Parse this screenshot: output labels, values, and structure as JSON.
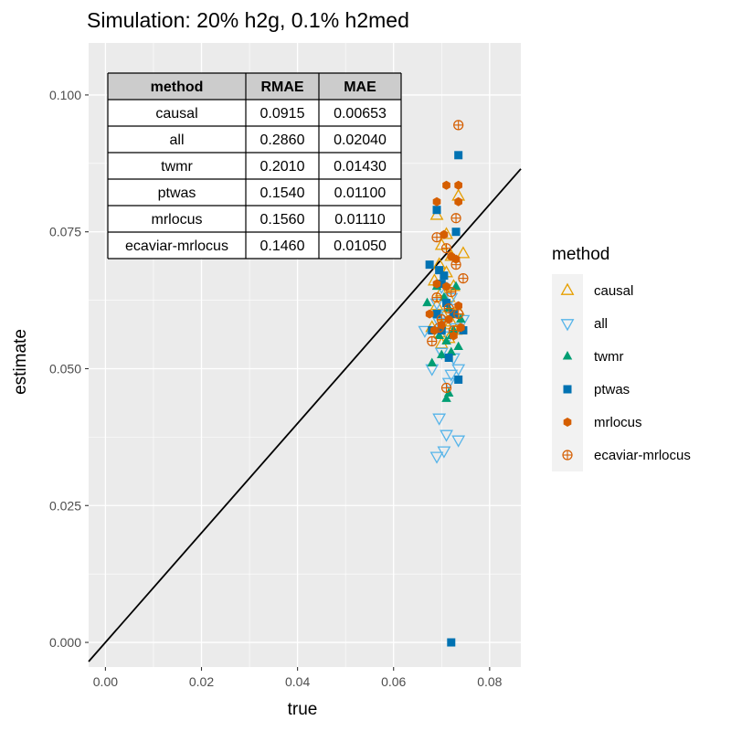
{
  "chart_data": {
    "type": "scatter",
    "title": "Simulation: 20% h2g, 0.1% h2med",
    "xlabel": "true",
    "ylabel": "estimate",
    "xlim": [
      -0.0035,
      0.0865
    ],
    "ylim": [
      -0.0045,
      0.1095
    ],
    "xticks": [
      0.0,
      0.02,
      0.04,
      0.06,
      0.08
    ],
    "xtick_labels": [
      "0.00",
      "0.02",
      "0.04",
      "0.06",
      "0.08"
    ],
    "yticks": [
      0.0,
      0.025,
      0.05,
      0.075,
      0.1
    ],
    "ytick_labels": [
      "0.000",
      "0.025",
      "0.050",
      "0.075",
      "0.100"
    ],
    "grid": true,
    "reference_line": {
      "slope": 1,
      "intercept": 0,
      "color": "#000000"
    },
    "legend": {
      "title": "method",
      "position": "right"
    },
    "series": [
      {
        "name": "causal",
        "color": "#E69F00",
        "shape": "triangle-open",
        "points": [
          [
            0.069,
            0.078
          ],
          [
            0.071,
            0.0745
          ],
          [
            0.0735,
            0.0815
          ],
          [
            0.0745,
            0.071
          ],
          [
            0.07,
            0.0725
          ],
          [
            0.072,
            0.0705
          ],
          [
            0.0695,
            0.069
          ],
          [
            0.071,
            0.0675
          ],
          [
            0.0685,
            0.066
          ],
          [
            0.0725,
            0.065
          ],
          [
            0.07,
            0.064
          ],
          [
            0.0715,
            0.063
          ],
          [
            0.069,
            0.0615
          ],
          [
            0.0735,
            0.0605
          ],
          [
            0.0705,
            0.0595
          ],
          [
            0.072,
            0.0585
          ],
          [
            0.068,
            0.0575
          ],
          [
            0.073,
            0.057
          ],
          [
            0.0695,
            0.0565
          ],
          [
            0.0715,
            0.0555
          ],
          [
            0.07,
            0.0545
          ],
          [
            0.0725,
            0.06
          ],
          [
            0.071,
            0.058
          ],
          [
            0.074,
            0.0575
          ]
        ]
      },
      {
        "name": "all",
        "color": "#56B4E9",
        "shape": "triangle-down-open",
        "points": [
          [
            0.069,
            0.034
          ],
          [
            0.0705,
            0.035
          ],
          [
            0.0735,
            0.037
          ],
          [
            0.071,
            0.038
          ],
          [
            0.0695,
            0.041
          ],
          [
            0.0715,
            0.0475
          ],
          [
            0.072,
            0.049
          ],
          [
            0.068,
            0.05
          ],
          [
            0.0735,
            0.05
          ],
          [
            0.0725,
            0.052
          ],
          [
            0.07,
            0.053
          ],
          [
            0.0665,
            0.057
          ],
          [
            0.0745,
            0.059
          ],
          [
            0.071,
            0.06
          ],
          [
            0.069,
            0.062
          ],
          [
            0.072,
            0.063
          ],
          [
            0.07,
            0.065
          ],
          [
            0.073,
            0.0575
          ],
          [
            0.0715,
            0.056
          ],
          [
            0.0695,
            0.0585
          ],
          [
            0.0725,
            0.061
          ]
        ]
      },
      {
        "name": "twmr",
        "color": "#009E73",
        "shape": "triangle-filled",
        "points": [
          [
            0.071,
            0.0445
          ],
          [
            0.0715,
            0.0455
          ],
          [
            0.068,
            0.051
          ],
          [
            0.07,
            0.0525
          ],
          [
            0.072,
            0.053
          ],
          [
            0.0735,
            0.054
          ],
          [
            0.071,
            0.055
          ],
          [
            0.0695,
            0.056
          ],
          [
            0.0725,
            0.057
          ],
          [
            0.067,
            0.062
          ],
          [
            0.0705,
            0.063
          ],
          [
            0.069,
            0.065
          ],
          [
            0.073,
            0.065
          ],
          [
            0.0715,
            0.061
          ],
          [
            0.074,
            0.059
          ],
          [
            0.07,
            0.058
          ],
          [
            0.072,
            0.056
          ]
        ]
      },
      {
        "name": "ptwas",
        "color": "#0072B2",
        "shape": "square-filled",
        "points": [
          [
            0.072,
            0.0
          ],
          [
            0.0735,
            0.048
          ],
          [
            0.0715,
            0.052
          ],
          [
            0.07,
            0.057
          ],
          [
            0.069,
            0.06
          ],
          [
            0.071,
            0.062
          ],
          [
            0.0675,
            0.069
          ],
          [
            0.0695,
            0.068
          ],
          [
            0.0705,
            0.067
          ],
          [
            0.069,
            0.079
          ],
          [
            0.073,
            0.075
          ],
          [
            0.0735,
            0.089
          ],
          [
            0.0745,
            0.057
          ],
          [
            0.0725,
            0.06
          ],
          [
            0.07,
            0.0655
          ],
          [
            0.068,
            0.057
          ]
        ]
      },
      {
        "name": "mrlocus",
        "color": "#D55E00",
        "shape": "hexagon-filled",
        "points": [
          [
            0.069,
            0.0805
          ],
          [
            0.071,
            0.0835
          ],
          [
            0.0735,
            0.0835
          ],
          [
            0.0735,
            0.0805
          ],
          [
            0.0705,
            0.0745
          ],
          [
            0.072,
            0.0705
          ],
          [
            0.073,
            0.07
          ],
          [
            0.069,
            0.0655
          ],
          [
            0.071,
            0.065
          ],
          [
            0.0675,
            0.06
          ],
          [
            0.0735,
            0.0615
          ],
          [
            0.0715,
            0.059
          ],
          [
            0.074,
            0.0575
          ],
          [
            0.07,
            0.058
          ],
          [
            0.0725,
            0.056
          ],
          [
            0.0685,
            0.057
          ]
        ]
      },
      {
        "name": "ecaviar-mrlocus",
        "color": "#D55E00",
        "shape": "circle-plus-open",
        "points": [
          [
            0.0735,
            0.0945
          ],
          [
            0.073,
            0.0775
          ],
          [
            0.069,
            0.074
          ],
          [
            0.071,
            0.072
          ],
          [
            0.073,
            0.069
          ],
          [
            0.0745,
            0.0665
          ],
          [
            0.069,
            0.063
          ],
          [
            0.0715,
            0.061
          ],
          [
            0.07,
            0.059
          ],
          [
            0.0735,
            0.06
          ],
          [
            0.068,
            0.055
          ],
          [
            0.071,
            0.0465
          ],
          [
            0.0725,
            0.057
          ],
          [
            0.0695,
            0.0575
          ],
          [
            0.072,
            0.064
          ]
        ]
      }
    ]
  },
  "stats_table": {
    "headers": [
      "method",
      "RMAE",
      "MAE"
    ],
    "rows": [
      [
        "causal",
        "0.0915",
        "0.00653"
      ],
      [
        "all",
        "0.2860",
        "0.02040"
      ],
      [
        "twmr",
        "0.2010",
        "0.01430"
      ],
      [
        "ptwas",
        "0.1540",
        "0.01100"
      ],
      [
        "mrlocus",
        "0.1560",
        "0.01110"
      ],
      [
        "ecaviar-mrlocus",
        "0.1460",
        "0.01050"
      ]
    ],
    "header_fill": "#cccccc"
  },
  "theme": {
    "panel_background": "#ebebeb",
    "grid_major": "#ffffff",
    "legend_key_background": "#f2f2f2"
  }
}
